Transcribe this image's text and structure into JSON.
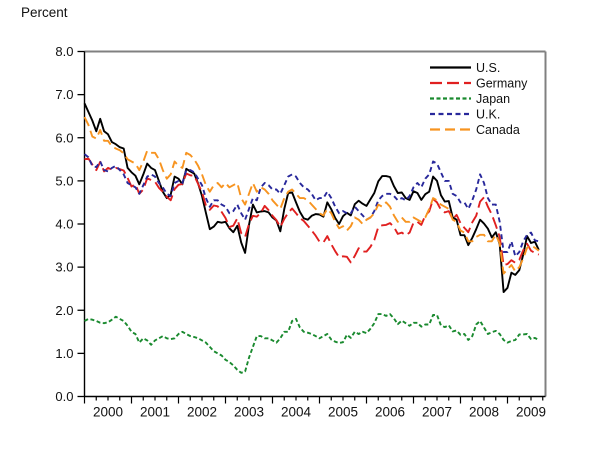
{
  "chart_data": {
    "type": "line",
    "title": "Percent",
    "xlabel": "",
    "ylabel": "Percent",
    "ylim": [
      0.0,
      8.0
    ],
    "ytick_step": 1.0,
    "ytick_labels": [
      "0.0",
      "1.0",
      "2.0",
      "3.0",
      "4.0",
      "5.0",
      "6.0",
      "7.0",
      "8.0"
    ],
    "x_start_year": 2000,
    "x_end_year_fraction": 2009.8,
    "x_tick_years": [
      2000,
      2001,
      2002,
      2003,
      2004,
      2005,
      2006,
      2007,
      2008,
      2009
    ],
    "x_minor_ticks": "quarterly",
    "x_resolution": "monthly",
    "grid": false,
    "legend_position": "top-right-inside",
    "frame_color": "#808080",
    "axis_color": "#000000",
    "text_color": "#111111",
    "series": [
      {
        "name": "U.S.",
        "color": "#000000",
        "dash": null,
        "values": [
          6.8,
          6.6,
          6.4,
          6.15,
          6.44,
          6.15,
          6.08,
          5.9,
          5.85,
          5.78,
          5.75,
          5.3,
          5.2,
          5.12,
          4.92,
          5.15,
          5.4,
          5.3,
          5.25,
          5.0,
          4.75,
          4.6,
          4.68,
          5.1,
          5.05,
          4.92,
          5.28,
          5.22,
          5.17,
          4.94,
          4.65,
          4.26,
          3.88,
          3.94,
          4.05,
          4.03,
          4.05,
          3.9,
          3.81,
          3.96,
          3.57,
          3.33,
          3.98,
          4.45,
          4.27,
          4.29,
          4.3,
          4.27,
          4.15,
          4.08,
          3.83,
          4.35,
          4.72,
          4.73,
          4.5,
          4.28,
          4.13,
          4.1,
          4.19,
          4.23,
          4.22,
          4.17,
          4.5,
          4.34,
          4.14,
          4.0,
          4.18,
          4.26,
          4.2,
          4.46,
          4.54,
          4.47,
          4.42,
          4.57,
          4.72,
          4.99,
          5.11,
          5.11,
          5.09,
          4.88,
          4.72,
          4.73,
          4.6,
          4.56,
          4.76,
          4.72,
          4.56,
          4.69,
          4.75,
          5.1,
          5.0,
          4.67,
          4.52,
          4.53,
          4.15,
          4.1,
          3.74,
          3.74,
          3.51,
          3.68,
          3.88,
          4.1,
          4.01,
          3.89,
          3.69,
          3.81,
          3.53,
          2.42,
          2.52,
          2.87,
          2.82,
          2.93,
          3.29,
          3.72,
          3.56,
          3.59,
          3.4
        ]
      },
      {
        "name": "Germany",
        "color": "#e02020",
        "dash": "12,5",
        "values": [
          5.5,
          5.52,
          5.38,
          5.25,
          5.44,
          5.22,
          5.3,
          5.26,
          5.3,
          5.27,
          5.24,
          5.07,
          4.87,
          4.92,
          4.7,
          4.8,
          5.06,
          5.02,
          4.98,
          4.84,
          4.75,
          4.63,
          4.55,
          4.81,
          4.91,
          4.93,
          5.17,
          5.13,
          5.12,
          4.93,
          4.74,
          4.43,
          4.33,
          4.43,
          4.41,
          4.28,
          4.14,
          3.93,
          3.96,
          4.13,
          3.79,
          3.7,
          4.0,
          4.19,
          4.17,
          4.26,
          4.42,
          4.32,
          4.19,
          4.09,
          3.93,
          4.12,
          4.26,
          4.36,
          4.25,
          4.14,
          4.07,
          3.96,
          3.85,
          3.73,
          3.59,
          3.57,
          3.72,
          3.53,
          3.37,
          3.23,
          3.25,
          3.24,
          3.11,
          3.26,
          3.44,
          3.36,
          3.36,
          3.47,
          3.63,
          3.93,
          3.97,
          3.98,
          4.02,
          3.93,
          3.77,
          3.8,
          3.74,
          3.8,
          4.03,
          4.05,
          3.98,
          4.2,
          4.29,
          4.58,
          4.5,
          4.33,
          4.27,
          4.3,
          4.11,
          4.21,
          4.02,
          3.91,
          3.81,
          4.04,
          4.19,
          4.52,
          4.62,
          4.4,
          4.22,
          3.97,
          3.7,
          3.05,
          3.07,
          3.16,
          3.1,
          3.17,
          3.39,
          3.54,
          3.38,
          3.33,
          3.29
        ]
      },
      {
        "name": "Japan",
        "color": "#1a8a2f",
        "dash": "4,2.5",
        "values": [
          1.75,
          1.8,
          1.78,
          1.75,
          1.71,
          1.7,
          1.72,
          1.78,
          1.85,
          1.8,
          1.75,
          1.64,
          1.5,
          1.45,
          1.25,
          1.35,
          1.3,
          1.2,
          1.3,
          1.35,
          1.4,
          1.35,
          1.33,
          1.35,
          1.45,
          1.5,
          1.45,
          1.4,
          1.38,
          1.35,
          1.3,
          1.25,
          1.15,
          1.05,
          1.0,
          0.95,
          0.85,
          0.8,
          0.72,
          0.62,
          0.55,
          0.58,
          0.9,
          1.15,
          1.4,
          1.4,
          1.35,
          1.35,
          1.3,
          1.25,
          1.35,
          1.5,
          1.5,
          1.75,
          1.8,
          1.6,
          1.5,
          1.48,
          1.45,
          1.4,
          1.35,
          1.4,
          1.45,
          1.32,
          1.27,
          1.24,
          1.26,
          1.43,
          1.36,
          1.5,
          1.45,
          1.5,
          1.47,
          1.57,
          1.7,
          1.91,
          1.91,
          1.87,
          1.91,
          1.81,
          1.68,
          1.76,
          1.7,
          1.64,
          1.71,
          1.71,
          1.62,
          1.67,
          1.67,
          1.89,
          1.89,
          1.65,
          1.61,
          1.65,
          1.51,
          1.53,
          1.43,
          1.45,
          1.31,
          1.4,
          1.67,
          1.75,
          1.6,
          1.45,
          1.49,
          1.52,
          1.45,
          1.31,
          1.25,
          1.29,
          1.31,
          1.44,
          1.44,
          1.45,
          1.33,
          1.36,
          1.31
        ]
      },
      {
        "name": "U.K.",
        "color": "#28289b",
        "dash": "5,3.5",
        "values": [
          5.62,
          5.55,
          5.35,
          5.32,
          5.45,
          5.25,
          5.22,
          5.3,
          5.35,
          5.25,
          5.15,
          4.95,
          4.9,
          4.85,
          4.7,
          4.9,
          5.1,
          5.15,
          5.1,
          4.95,
          4.85,
          4.7,
          4.65,
          4.95,
          5.0,
          4.95,
          5.25,
          5.25,
          5.2,
          5.05,
          4.9,
          4.6,
          4.4,
          4.55,
          4.55,
          4.45,
          4.4,
          4.25,
          4.3,
          4.45,
          4.25,
          4.1,
          4.35,
          4.6,
          4.55,
          4.85,
          4.95,
          4.9,
          4.8,
          4.8,
          4.7,
          4.9,
          5.1,
          5.15,
          5.1,
          4.95,
          4.85,
          4.8,
          4.7,
          4.55,
          4.6,
          4.6,
          4.75,
          4.6,
          4.4,
          4.25,
          4.3,
          4.25,
          4.25,
          4.4,
          4.3,
          4.2,
          4.1,
          4.15,
          4.3,
          4.55,
          4.65,
          4.7,
          4.7,
          4.65,
          4.55,
          4.6,
          4.55,
          4.65,
          4.85,
          4.95,
          4.85,
          5.05,
          5.15,
          5.45,
          5.4,
          5.2,
          5.0,
          5.0,
          4.7,
          4.65,
          4.5,
          4.5,
          4.35,
          4.55,
          4.8,
          5.15,
          4.95,
          4.6,
          4.45,
          4.45,
          4.05,
          3.35,
          3.35,
          3.6,
          3.25,
          3.35,
          3.6,
          3.75,
          3.8,
          3.62,
          3.6
        ]
      },
      {
        "name": "Canada",
        "color": "#f79420",
        "dash": "10,5",
        "values": [
          6.48,
          6.3,
          6.03,
          5.98,
          6.18,
          5.93,
          5.93,
          5.8,
          5.75,
          5.71,
          5.64,
          5.5,
          5.45,
          5.4,
          5.25,
          5.45,
          5.7,
          5.65,
          5.65,
          5.5,
          5.25,
          5.05,
          5.15,
          5.45,
          5.35,
          5.3,
          5.65,
          5.6,
          5.5,
          5.35,
          5.15,
          4.9,
          4.75,
          4.9,
          4.95,
          4.85,
          4.95,
          4.85,
          4.9,
          4.95,
          4.6,
          4.45,
          4.7,
          4.95,
          4.75,
          4.85,
          4.8,
          4.7,
          4.55,
          4.45,
          4.35,
          4.6,
          4.75,
          4.8,
          4.7,
          4.6,
          4.6,
          4.55,
          4.45,
          4.35,
          4.25,
          4.2,
          4.35,
          4.25,
          4.05,
          3.9,
          3.95,
          3.85,
          3.95,
          4.15,
          4.1,
          4.0,
          4.1,
          4.15,
          4.25,
          4.45,
          4.4,
          4.5,
          4.4,
          4.2,
          4.05,
          4.15,
          4.05,
          4.05,
          4.15,
          4.1,
          4.05,
          4.15,
          4.35,
          4.6,
          4.55,
          4.45,
          4.4,
          4.35,
          4.1,
          4.05,
          3.85,
          3.8,
          3.6,
          3.6,
          3.7,
          3.75,
          3.75,
          3.6,
          3.6,
          3.75,
          3.55,
          2.85,
          2.95,
          3.05,
          2.9,
          3.0,
          3.2,
          3.45,
          3.5,
          3.45,
          3.38
        ]
      }
    ]
  }
}
